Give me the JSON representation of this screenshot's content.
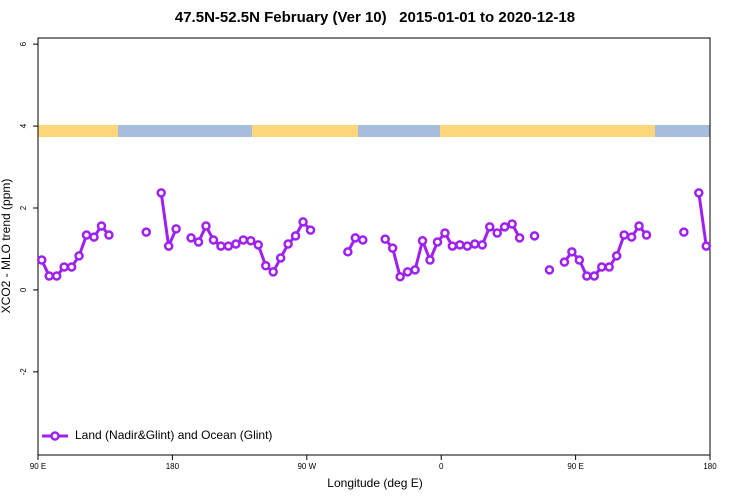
{
  "chart_data": {
    "type": "line",
    "title": "47.5N-52.5N February (Ver 10)   2015-01-01 to 2020-12-18",
    "xlabel": "Longitude (deg E)",
    "ylabel": "XCO2 - MLO trend (ppm)",
    "xlim": [
      90,
      540
    ],
    "ylim": [
      -4.03,
      6.15
    ],
    "xticks": [
      {
        "value": 90,
        "label": "90 E"
      },
      {
        "value": 180,
        "label": "180"
      },
      {
        "value": 270,
        "label": "90 W"
      },
      {
        "value": 360,
        "label": "0"
      },
      {
        "value": 450,
        "label": "90 E"
      },
      {
        "value": 540,
        "label": "180"
      }
    ],
    "yticks": [
      -2,
      0,
      2,
      4,
      6
    ],
    "legend": "bottomleft",
    "x": [
      92.5,
      97.5,
      102.5,
      107.5,
      112.5,
      117.5,
      122.5,
      127.5,
      132.5,
      137.5,
      142.5,
      147.5,
      152.5,
      157.5,
      162.5,
      167.5,
      172.5,
      177.5,
      182.5,
      187.5,
      192.5,
      197.5,
      202.5,
      207.5,
      212.5,
      217.5,
      222.5,
      227.5,
      232.5,
      237.5,
      242.5,
      247.5,
      252.5,
      257.5,
      262.5,
      267.5,
      272.5,
      277.5,
      282.5,
      287.5,
      292.5,
      297.5,
      302.5,
      307.5,
      312.5,
      317.5,
      322.5,
      327.5,
      332.5,
      337.5,
      342.5,
      347.5,
      352.5,
      357.5,
      362.5,
      367.5,
      372.5,
      377.5,
      382.5,
      387.5,
      392.5,
      397.5,
      402.5,
      407.5,
      412.5,
      417.5,
      422.5,
      427.5,
      432.5,
      437.5,
      442.5,
      447.5,
      452.5,
      457.5,
      462.5,
      467.5,
      472.5,
      477.5,
      482.5,
      487.5,
      492.5,
      497.5,
      502.5,
      507.5,
      512.5,
      517.5,
      522.5,
      527.5,
      532.5,
      537.5
    ],
    "series": [
      {
        "name": "Land (Nadir&Glint) and Ocean (Glint)",
        "color": "#a020f0",
        "values": [
          0.73,
          0.34,
          0.34,
          0.56,
          0.56,
          0.83,
          1.34,
          1.29,
          1.56,
          1.34,
          null,
          null,
          null,
          null,
          1.41,
          null,
          2.37,
          1.07,
          1.49,
          null,
          1.27,
          1.17,
          1.56,
          1.22,
          1.07,
          1.07,
          1.12,
          1.22,
          1.2,
          1.1,
          0.59,
          0.44,
          0.78,
          1.12,
          1.32,
          1.66,
          1.46,
          null,
          null,
          null,
          null,
          0.93,
          1.27,
          1.22,
          null,
          null,
          1.24,
          1.02,
          0.32,
          0.44,
          0.49,
          1.2,
          0.73,
          1.17,
          1.39,
          1.07,
          1.1,
          1.07,
          1.12,
          1.1,
          1.54,
          1.39,
          1.54,
          1.61,
          1.27,
          null,
          1.32,
          null,
          0.49,
          null,
          0.68,
          0.93,
          0.73,
          0.34,
          0.34,
          0.56,
          0.56,
          0.83,
          1.34,
          1.29,
          1.56,
          1.34,
          null,
          null,
          null,
          null,
          1.41,
          null,
          2.37,
          1.07
        ]
      }
    ]
  }
}
